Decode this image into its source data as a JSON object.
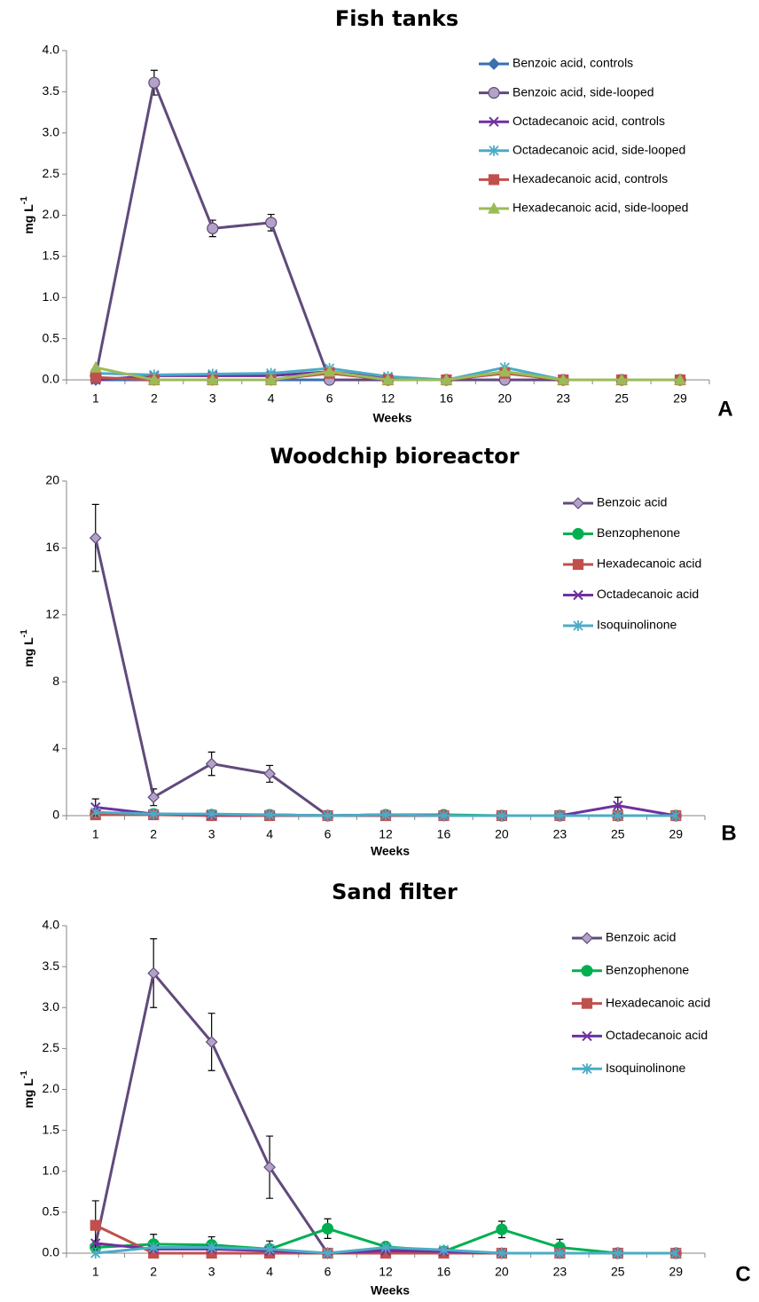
{
  "chart_data": [
    {
      "type": "line",
      "title": "Fish tanks",
      "panel_label": "A",
      "xlabel": "Weeks",
      "ylabel": "mg L",
      "ylabel_sup": "-1",
      "categories": [
        "1",
        "2",
        "3",
        "4",
        "6",
        "12",
        "16",
        "20",
        "23",
        "25",
        "29"
      ],
      "ylim": [
        0,
        4
      ],
      "yticks": [
        {
          "value": 0,
          "label": "0.0"
        },
        {
          "value": 0.5,
          "label": "0.5"
        },
        {
          "value": 1,
          "label": "1.0"
        },
        {
          "value": 1.5,
          "label": "1.5"
        },
        {
          "value": 2,
          "label": "2.0"
        },
        {
          "value": 2.5,
          "label": "2.5"
        },
        {
          "value": 3,
          "label": "3.0"
        },
        {
          "value": 3.5,
          "label": "3.5"
        },
        {
          "value": 4,
          "label": "4.0"
        }
      ],
      "series": [
        {
          "name": "Benzoic acid, controls",
          "color": "#3a6fb0",
          "marker": "diamond",
          "marker_fill": "#3a6fb0",
          "values": [
            0,
            0,
            0,
            0,
            0,
            0,
            0,
            0,
            0,
            0,
            0
          ]
        },
        {
          "name": "Benzoic acid, side-looped",
          "color": "#604a7b",
          "marker": "circle",
          "marker_fill": "#b3a2c7",
          "values": [
            0.05,
            3.61,
            1.84,
            1.91,
            0,
            0,
            0,
            0,
            0,
            0,
            0
          ],
          "errors": [
            null,
            0.15,
            0.1,
            0.1,
            null,
            null,
            null,
            null,
            null,
            null,
            null
          ]
        },
        {
          "name": "Octadecanoic acid, controls",
          "color": "#7030a0",
          "marker": "x",
          "marker_fill": "#7030a0",
          "values": [
            0,
            0.05,
            0.05,
            0.05,
            0.1,
            0.02,
            0,
            0.1,
            0,
            0,
            0
          ]
        },
        {
          "name": "Octadecanoic acid, side-looped",
          "color": "#4bacc6",
          "marker": "asterisk",
          "marker_fill": "#4bacc6",
          "values": [
            0.08,
            0.06,
            0.07,
            0.08,
            0.14,
            0.04,
            0,
            0.15,
            0,
            0,
            0
          ]
        },
        {
          "name": "Hexadecanoic acid, controls",
          "color": "#c0504d",
          "marker": "square",
          "marker_fill": "#c0504d",
          "values": [
            0.03,
            0,
            0,
            0,
            0.08,
            0,
            0,
            0.08,
            0,
            0,
            0
          ]
        },
        {
          "name": "Hexadecanoic acid, side-looped",
          "color": "#9bbb59",
          "marker": "triangle",
          "marker_fill": "#9bbb59",
          "values": [
            0.15,
            0,
            0,
            0,
            0.1,
            0,
            0,
            0.1,
            0,
            0,
            0
          ]
        }
      ]
    },
    {
      "type": "line",
      "title": "Woodchip bioreactor",
      "panel_label": "B",
      "xlabel": "Weeks",
      "ylabel": "mg L",
      "ylabel_sup": "-1",
      "categories": [
        "1",
        "2",
        "3",
        "4",
        "6",
        "12",
        "16",
        "20",
        "23",
        "25",
        "29"
      ],
      "ylim": [
        0,
        20
      ],
      "yticks": [
        0,
        4,
        8,
        12,
        16,
        20
      ],
      "series": [
        {
          "name": "Benzoic acid",
          "color": "#604a7b",
          "marker": "diamond",
          "marker_fill": "#b3a2c7",
          "values": [
            16.6,
            1.1,
            3.1,
            2.5,
            0,
            0.05,
            0,
            0,
            0,
            0,
            0
          ],
          "errors": [
            2,
            0.5,
            0.7,
            0.5,
            null,
            null,
            null,
            null,
            null,
            null,
            null
          ]
        },
        {
          "name": "Benzophenone",
          "color": "#00b050",
          "marker": "circle",
          "marker_fill": "#00b050",
          "values": [
            0.1,
            0.1,
            0.05,
            0.05,
            0,
            0.05,
            0.05,
            0,
            0,
            0,
            0
          ]
        },
        {
          "name": "Hexadecanoic acid",
          "color": "#c0504d",
          "marker": "square",
          "marker_fill": "#c0504d",
          "values": [
            0.05,
            0.05,
            0,
            0,
            0,
            0,
            0,
            0,
            0,
            0,
            0
          ]
        },
        {
          "name": "Octadecanoic acid",
          "color": "#7030a0",
          "marker": "x",
          "marker_fill": "#7030a0",
          "values": [
            0.5,
            0.1,
            0.05,
            0.05,
            0,
            0.05,
            0,
            0,
            0,
            0.6,
            0
          ],
          "errors": [
            0.5,
            null,
            null,
            null,
            null,
            null,
            null,
            null,
            null,
            0.5,
            null
          ]
        },
        {
          "name": "Isoquinolinone",
          "color": "#4bacc6",
          "marker": "asterisk",
          "marker_fill": "#4bacc6",
          "values": [
            0.2,
            0.1,
            0.1,
            0.05,
            0,
            0.05,
            0,
            0,
            0,
            0,
            0
          ]
        }
      ]
    },
    {
      "type": "line",
      "title": "Sand filter",
      "panel_label": "C",
      "xlabel": "Weeks",
      "ylabel": "mg L",
      "ylabel_sup": "-1",
      "categories": [
        "1",
        "2",
        "3",
        "4",
        "6",
        "12",
        "16",
        "20",
        "23",
        "25",
        "29"
      ],
      "ylim": [
        0,
        4
      ],
      "yticks": [
        {
          "value": 0,
          "label": "0.0"
        },
        {
          "value": 0.5,
          "label": "0.5"
        },
        {
          "value": 1,
          "label": "1.0"
        },
        {
          "value": 1.5,
          "label": "1.5"
        },
        {
          "value": 2,
          "label": "2.0"
        },
        {
          "value": 2.5,
          "label": "2.5"
        },
        {
          "value": 3,
          "label": "3.0"
        },
        {
          "value": 3.5,
          "label": "3.5"
        },
        {
          "value": 4,
          "label": "4.0"
        }
      ],
      "series": [
        {
          "name": "Benzoic acid",
          "color": "#604a7b",
          "marker": "diamond",
          "marker_fill": "#b3a2c7",
          "values": [
            0.1,
            3.42,
            2.58,
            1.05,
            0,
            0.05,
            0.03,
            0,
            0,
            0,
            0
          ],
          "errors": [
            null,
            0.42,
            0.35,
            0.38,
            null,
            null,
            null,
            null,
            null,
            null,
            null
          ]
        },
        {
          "name": "Benzophenone",
          "color": "#00b050",
          "marker": "circle",
          "marker_fill": "#00b050",
          "values": [
            0.07,
            0.11,
            0.1,
            0.05,
            0.3,
            0.08,
            0.02,
            0.29,
            0.07,
            0,
            0
          ],
          "errors": [
            0.05,
            0.12,
            0.1,
            0.1,
            0.12,
            null,
            null,
            0.1,
            0.1,
            null,
            null
          ]
        },
        {
          "name": "Hexadecanoic acid",
          "color": "#c0504d",
          "marker": "square",
          "marker_fill": "#c0504d",
          "values": [
            0.34,
            0,
            0,
            0,
            0,
            0,
            0,
            0,
            0,
            0,
            0
          ],
          "errors": [
            0.3,
            null,
            null,
            null,
            null,
            null,
            null,
            null,
            null,
            null,
            null
          ]
        },
        {
          "name": "Octadecanoic acid",
          "color": "#7030a0",
          "marker": "x",
          "marker_fill": "#7030a0",
          "values": [
            0.12,
            0.05,
            0.05,
            0.03,
            0,
            0.03,
            0.02,
            0,
            0,
            0,
            0
          ]
        },
        {
          "name": "Isoquinolinone",
          "color": "#4bacc6",
          "marker": "asterisk",
          "marker_fill": "#4bacc6",
          "values": [
            0,
            0.07,
            0.07,
            0.05,
            0,
            0.07,
            0.04,
            0,
            0,
            0,
            0
          ]
        }
      ]
    }
  ]
}
